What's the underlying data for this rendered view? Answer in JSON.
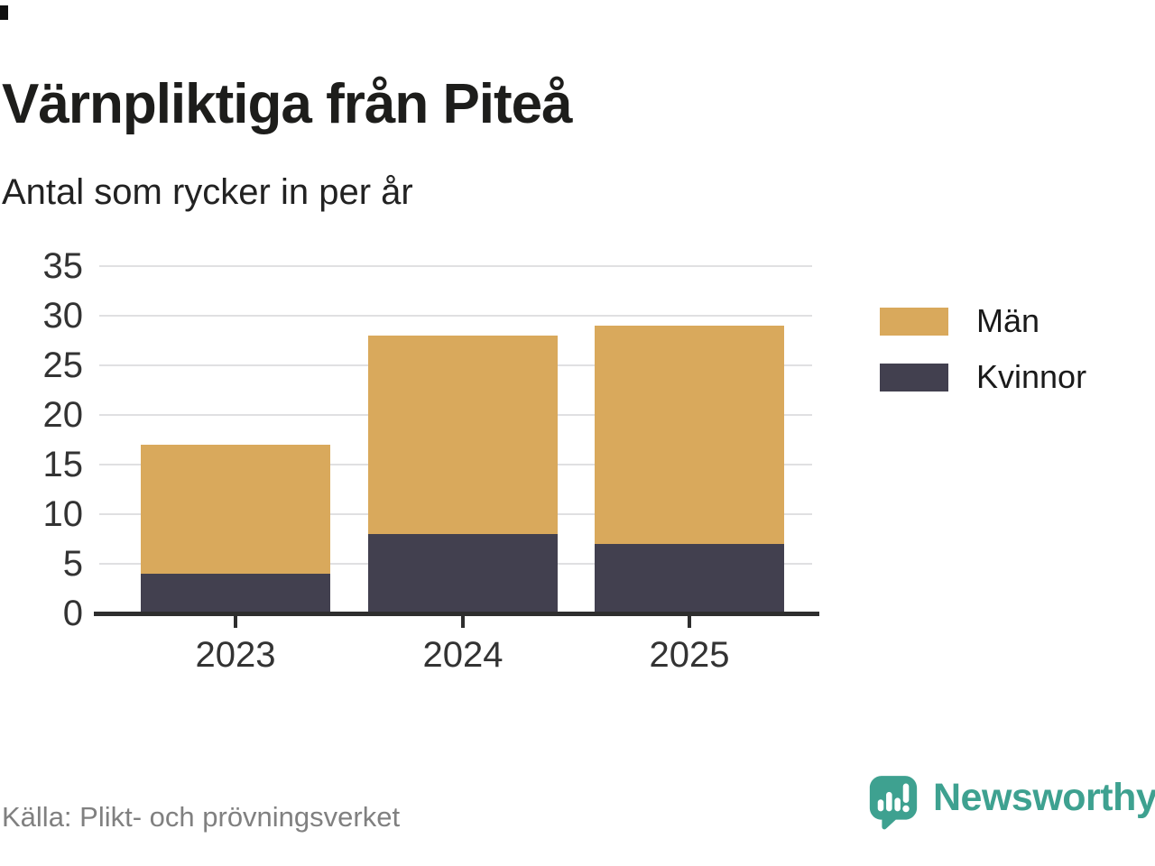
{
  "header": {
    "title": "Värnpliktiga från Piteå",
    "subtitle": "Antal som rycker in per år"
  },
  "chart_data": {
    "type": "bar",
    "stacked": true,
    "categories": [
      "2023",
      "2024",
      "2025"
    ],
    "series": [
      {
        "name": "Män",
        "color": "#d9a95c",
        "values": [
          13,
          20,
          22
        ]
      },
      {
        "name": "Kvinnor",
        "color": "#42404f",
        "values": [
          4,
          8,
          7
        ]
      }
    ],
    "stack_bottom_to_top": [
      "Kvinnor",
      "Män"
    ],
    "stack_totals": [
      17,
      28,
      29
    ],
    "ylim": [
      0,
      35
    ],
    "yticks": [
      0,
      5,
      10,
      15,
      20,
      25,
      30,
      35
    ],
    "grid": "horizontal",
    "legend_position": "right",
    "title": "Värnpliktiga från Piteå",
    "xlabel": "",
    "ylabel": ""
  },
  "footer": {
    "source": "Källa: Plikt- och prövningsverket",
    "brand_name": "Newsworthy"
  },
  "colors": {
    "grid": "#e0e0e2",
    "axis": "#2e2e2e",
    "tick_text": "#333333",
    "source_text": "#808080",
    "brand_teal": "#3ea190"
  },
  "icons": {
    "brand_logo": "newsworthy-speech-bubble-chart-icon"
  }
}
